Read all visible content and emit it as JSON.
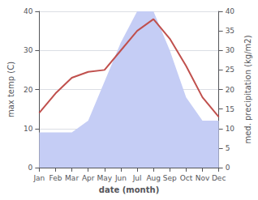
{
  "chart_data": {
    "type": "line",
    "xlabel": "date (month)",
    "ylabel": "max temp (C)",
    "y2label": "med. precipitation (kg/m2)",
    "categories": [
      "Jan",
      "Feb",
      "Mar",
      "Apr",
      "May",
      "Jun",
      "Jul",
      "Aug",
      "Sep",
      "Oct",
      "Nov",
      "Dec"
    ],
    "series": [
      {
        "type": "area",
        "color": "#c5cdf5",
        "axis": "y2",
        "values": [
          9,
          9,
          9,
          12,
          22,
          32,
          40,
          40,
          30,
          18,
          12,
          12
        ]
      },
      {
        "type": "line",
        "color": "#c0504d",
        "values": [
          14,
          19,
          23,
          24.5,
          25,
          30,
          35,
          38,
          33,
          26,
          18,
          13
        ]
      }
    ],
    "ylim": [
      0,
      40
    ],
    "yticks": [
      0,
      10,
      20,
      30,
      40
    ],
    "y2lim": [
      0,
      40
    ],
    "y2ticks": [
      0,
      5,
      10,
      15,
      20,
      25,
      30,
      35,
      40
    ],
    "grid": true
  }
}
